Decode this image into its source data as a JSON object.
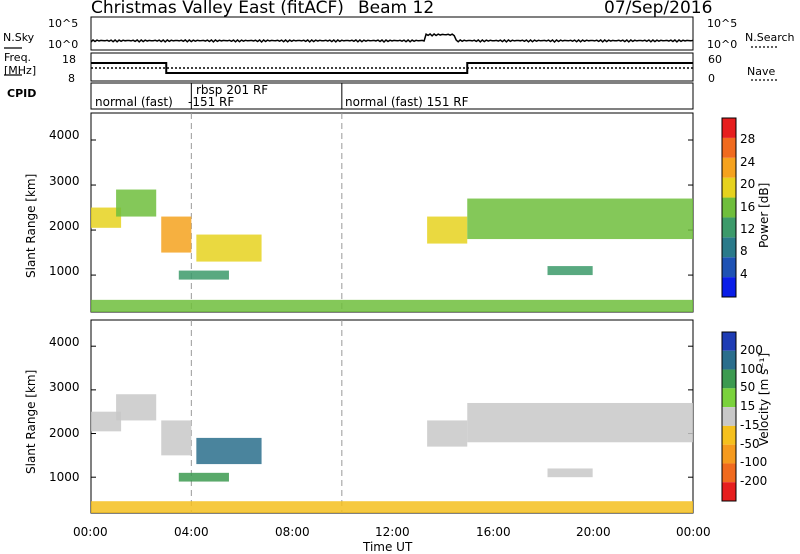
{
  "header": {
    "station": "Christmas Valley East (fitACF)",
    "beam": "Beam 12",
    "date": "07/Sep/2016"
  },
  "strip_labels": {
    "nsky": "N.Sky",
    "freq": "Freq.",
    "freq_unit": "[MHz]",
    "cpid": "CPID",
    "nsearch": "N.Search",
    "nave": "Nave",
    "left_top_top": "10^5",
    "left_top_bot": "10^0",
    "right_top_top": "10^5",
    "right_top_bot": "10^0",
    "freq_top": "18",
    "freq_bot": "8",
    "nave_top": "60",
    "nave_bot": "0"
  },
  "cpid_segments": [
    {
      "label": "normal (fast)",
      "start_hour": 0,
      "end_hour": 3.9
    },
    {
      "label": "-151 RF",
      "start_hour": 3.9,
      "end_hour": 4.2
    },
    {
      "label": "rbsp 201 RF",
      "start_hour": 4.2,
      "end_hour": 10.0
    },
    {
      "label": "normal (fast) 151 RF",
      "start_hour": 10.0,
      "end_hour": 24
    }
  ],
  "axes": {
    "y_label": "Slant Range [km]",
    "x_label": "Time UT",
    "y_ticks": [
      "1000",
      "2000",
      "3000",
      "4000"
    ],
    "x_ticks": [
      "00:00",
      "04:00",
      "08:00",
      "12:00",
      "16:00",
      "20:00",
      "00:00"
    ]
  },
  "colorbars": {
    "power": {
      "label": "Power [dB]",
      "ticks": [
        "4",
        "8",
        "12",
        "16",
        "20",
        "24",
        "28"
      ],
      "colors": [
        "#0a1ee8",
        "#1e52b4",
        "#2a7a8a",
        "#3c9a6a",
        "#6fbe3c",
        "#e6d21e",
        "#f5a21e",
        "#f06a1e",
        "#e61e1e"
      ]
    },
    "velocity": {
      "label": "Velocity [m s⁻¹]",
      "ticks": [
        "200",
        "100",
        "50",
        "15",
        "-15",
        "-50",
        "-100",
        "-200"
      ],
      "colors": [
        "#1e3cb4",
        "#2a6e8c",
        "#3c9a50",
        "#7ad23c",
        "#c8c8c8",
        "#f5c01e",
        "#f59a1e",
        "#f06a1e",
        "#e61e1e"
      ]
    }
  },
  "chart_data": {
    "type": "heatmap",
    "title": "Christmas Valley East (fitACF)",
    "xlabel": "Time UT",
    "ylabel": "Slant Range [km]",
    "xlim": [
      0,
      24
    ],
    "ylim": [
      180,
      4600
    ],
    "panels": [
      "power",
      "velocity"
    ],
    "dashed_lines_hour": [
      4.0,
      10.0
    ],
    "echo_regions": [
      {
        "t0": 0.0,
        "t1": 1.2,
        "r0": 2050,
        "r1": 2500,
        "power": 20,
        "velocity": 0
      },
      {
        "t0": 1.0,
        "t1": 2.6,
        "r0": 2300,
        "r1": 2900,
        "power": 16,
        "velocity": 0
      },
      {
        "t0": 2.8,
        "t1": 4.0,
        "r0": 1500,
        "r1": 2300,
        "power": 24,
        "velocity": 0
      },
      {
        "t0": 4.2,
        "t1": 6.8,
        "r0": 1300,
        "r1": 1900,
        "power": 20,
        "velocity": 100
      },
      {
        "t0": 3.5,
        "t1": 5.5,
        "r0": 900,
        "r1": 1100,
        "power": 12,
        "velocity": 50
      },
      {
        "t0": 0.0,
        "t1": 24.0,
        "r0": 180,
        "r1": 450,
        "power": 16,
        "velocity": -50
      },
      {
        "t0": 13.4,
        "t1": 15.0,
        "r0": 1700,
        "r1": 2300,
        "power": 20,
        "velocity": 0
      },
      {
        "t0": 15.0,
        "t1": 24.0,
        "r0": 1800,
        "r1": 2700,
        "power": 16,
        "velocity": 0
      },
      {
        "t0": 18.2,
        "t1": 20.0,
        "r0": 1000,
        "r1": 1200,
        "power": 12,
        "velocity": 0
      }
    ]
  }
}
